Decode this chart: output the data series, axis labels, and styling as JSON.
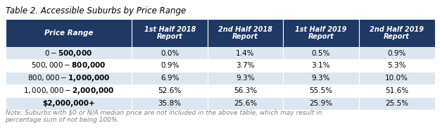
{
  "title": "Table 2. Accessible Suburbs by Price Range",
  "note": "Note: Suburbs with $0 or N/A median price are not included in the above table, which may result in\npercentage sum of not being 100%.",
  "header_bg": "#1F3864",
  "header_fg": "#FFFFFF",
  "row_bg_odd": "#FFFFFF",
  "row_bg_even": "#DCE6F1",
  "col_header": "Price Range",
  "col_numbers": [
    "1",
    "2",
    "1",
    "2"
  ],
  "col_sups": [
    "st",
    "nd",
    "st",
    "nd"
  ],
  "col_halves": [
    "Half 2018",
    "Half 2018",
    "Half 2019",
    "Half 2019"
  ],
  "rows": [
    {
      "label": "$0-$500,000",
      "values": [
        "0.0%",
        "1.4%",
        "0.5%",
        "0.9%"
      ]
    },
    {
      "label": "$500,000-$800,000",
      "values": [
        "0.9%",
        "3.7%",
        "3.1%",
        "5.3%"
      ]
    },
    {
      "label": "$800,000-$1,000,000",
      "values": [
        "6.9%",
        "9.3%",
        "9.3%",
        "10.0%"
      ]
    },
    {
      "label": "$1,000,000-$2,000,000",
      "values": [
        "52.6%",
        "56.3%",
        "55.5%",
        "51.6%"
      ]
    },
    {
      "label": "$2,000,000+",
      "values": [
        "35.8%",
        "25.6%",
        "25.9%",
        "25.5%"
      ]
    }
  ],
  "figsize": [
    6.25,
    1.89
  ],
  "dpi": 100,
  "title_fontsize": 8.5,
  "header_fontsize": 7.0,
  "data_fontsize": 7.5,
  "note_fontsize": 6.5,
  "note_color": "#808080"
}
